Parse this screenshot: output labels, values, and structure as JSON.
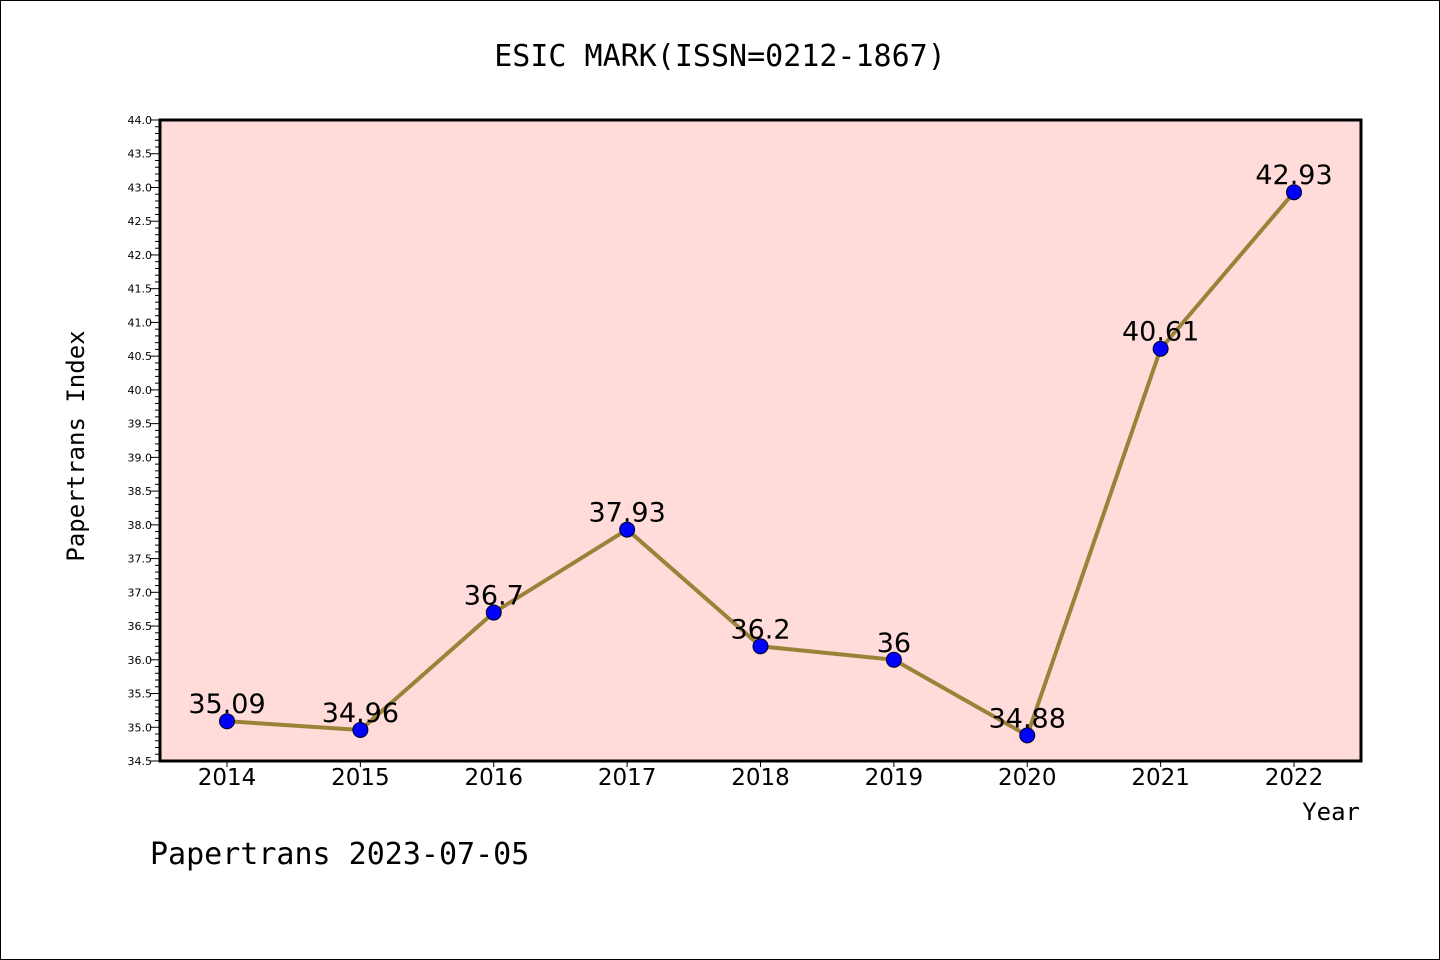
{
  "chart_data": {
    "type": "line",
    "title": "ESIC MARK(ISSN=0212-1867)",
    "xlabel": "Year",
    "ylabel": "Papertrans Index",
    "x": [
      "2014",
      "2015",
      "2016",
      "2017",
      "2018",
      "2019",
      "2020",
      "2021",
      "2022"
    ],
    "series": [
      {
        "values": [
          35.09,
          34.96,
          36.7,
          37.93,
          36.2,
          36,
          34.88,
          40.61,
          42.93
        ],
        "labels": [
          "35.09",
          "34.96",
          "36.7",
          "37.93",
          "36.2",
          "36",
          "34.88",
          "40.61",
          "42.93"
        ]
      }
    ],
    "ylim": [
      34.5,
      44.0
    ],
    "yticks": [
      "34.5",
      "35.0",
      "35.5",
      "36.0",
      "36.5",
      "37.0",
      "37.5",
      "38.0",
      "38.5",
      "39.0",
      "39.5",
      "40.0",
      "40.5",
      "41.0",
      "41.5",
      "42.0",
      "42.5",
      "43.0",
      "43.5",
      "44.0"
    ],
    "grid": false,
    "legend": "none",
    "colors": {
      "plot_background": "#FFDCDA",
      "line": "#9A8339",
      "marker": "#0000FF"
    }
  },
  "footer": {
    "credit": "Papertrans 2023-07-05"
  }
}
